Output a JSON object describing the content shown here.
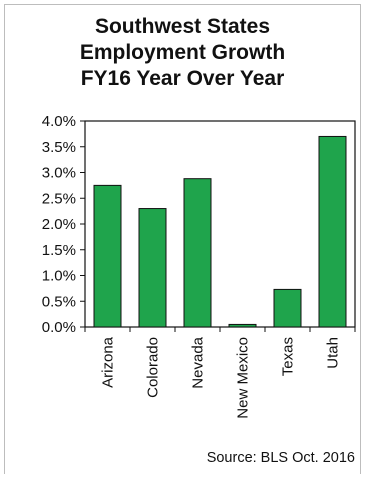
{
  "colors": {
    "bar_fill": "#1fa44c",
    "bar_stroke": "#111111",
    "axis": "#111111",
    "frame": "#bdbdbd"
  },
  "chart_data": {
    "type": "bar",
    "title_lines": [
      "Southwest States",
      "Employment Growth",
      "FY16 Year Over Year"
    ],
    "categories": [
      "Arizona",
      "Colorado",
      "Nevada",
      "New Mexico",
      "Texas",
      "Utah"
    ],
    "values": [
      2.75,
      2.3,
      2.88,
      0.05,
      0.73,
      3.7
    ],
    "ylim": [
      0,
      4.0
    ],
    "yticks": [
      "0.0%",
      "0.5%",
      "1.0%",
      "1.5%",
      "2.0%",
      "2.5%",
      "3.0%",
      "3.5%",
      "4.0%"
    ],
    "ytick_values": [
      0,
      0.5,
      1.0,
      1.5,
      2.0,
      2.5,
      3.0,
      3.5,
      4.0
    ],
    "grid": false,
    "source": "Source: BLS Oct. 2016"
  }
}
